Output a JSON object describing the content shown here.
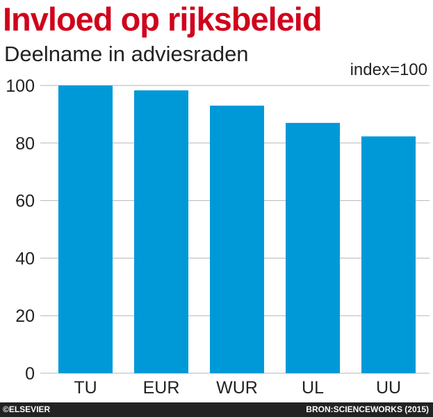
{
  "chart_data": {
    "type": "bar",
    "title": "Invloed op rijksbeleid",
    "subtitle": "Deelname in adviesraden",
    "unit_label": "index=100",
    "categories": [
      "TU",
      "EUR",
      "WUR",
      "UL",
      "UU"
    ],
    "values": [
      100,
      98.3,
      93,
      87,
      82.3
    ],
    "ylim": [
      0,
      100
    ],
    "yticks": [
      0,
      20,
      40,
      60,
      80,
      100
    ],
    "grid": true,
    "bar_color": "#0099d8",
    "grid_color": "#b5b5b5"
  },
  "footer": {
    "copyright": "©ELSEVIER",
    "source": "BRON:SCIENCEWORKS (2015)"
  }
}
